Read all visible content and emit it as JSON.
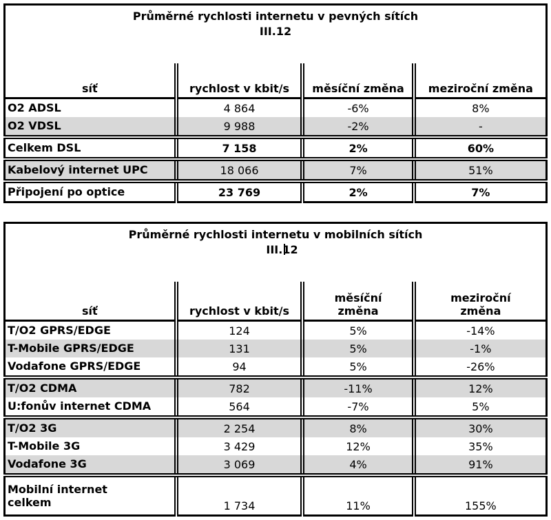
{
  "page": {
    "background_color": "#ffffff",
    "shade_color": "#d8d8d8",
    "border_color": "#000000",
    "text_color": "#000000"
  },
  "tables": [
    {
      "title": "Průměrné rychlosti internetu v pevných sítích",
      "period": "III.12",
      "columns": [
        "síť",
        "rychlost v kbit/s",
        "měsíční změna",
        "meziroční změna"
      ],
      "rows": [
        {
          "name": "O2 ADSL",
          "speed": "4 864",
          "monthly": "-6%",
          "yearly": "8%",
          "shaded": false,
          "bold_values": false,
          "group_end": false,
          "tall": false
        },
        {
          "name": "O2 VDSL",
          "speed": "9 988",
          "monthly": "-2%",
          "yearly": "-",
          "shaded": true,
          "bold_values": false,
          "group_end": true,
          "tall": false
        },
        {
          "name": "Celkem DSL",
          "speed": "7 158",
          "monthly": "2%",
          "yearly": "60%",
          "shaded": false,
          "bold_values": true,
          "group_end": true,
          "tall": false
        },
        {
          "name": "Kabelový internet UPC",
          "speed": "18 066",
          "monthly": "7%",
          "yearly": "51%",
          "shaded": true,
          "bold_values": false,
          "group_end": true,
          "tall": false
        },
        {
          "name": "Připojení po optice",
          "speed": "23 769",
          "monthly": "2%",
          "yearly": "7%",
          "shaded": false,
          "bold_values": true,
          "group_end": false,
          "tall": false
        }
      ]
    },
    {
      "title": "Průměrné rychlosti internetu v mobilních sítích",
      "period": "III.12",
      "columns": [
        "síť",
        "rychlost v kbit/s",
        "měsíční\nzměna",
        "meziroční\nzměna"
      ],
      "rows": [
        {
          "name": "T/O2 GPRS/EDGE",
          "speed": "124",
          "monthly": "5%",
          "yearly": "-14%",
          "shaded": false,
          "bold_values": false,
          "group_end": false,
          "tall": false
        },
        {
          "name": "T-Mobile GPRS/EDGE",
          "speed": "131",
          "monthly": "5%",
          "yearly": "-1%",
          "shaded": true,
          "bold_values": false,
          "group_end": false,
          "tall": false
        },
        {
          "name": "Vodafone GPRS/EDGE",
          "speed": "94",
          "monthly": "5%",
          "yearly": "-26%",
          "shaded": false,
          "bold_values": false,
          "group_end": true,
          "tall": false
        },
        {
          "name": "T/O2 CDMA",
          "speed": "782",
          "monthly": "-11%",
          "yearly": "12%",
          "shaded": true,
          "bold_values": false,
          "group_end": false,
          "tall": false
        },
        {
          "name": "U:fonův internet CDMA",
          "speed": "564",
          "monthly": "-7%",
          "yearly": "5%",
          "shaded": false,
          "bold_values": false,
          "group_end": true,
          "tall": false
        },
        {
          "name": "T/O2 3G",
          "speed": "2 254",
          "monthly": "8%",
          "yearly": "30%",
          "shaded": true,
          "bold_values": false,
          "group_end": false,
          "tall": false
        },
        {
          "name": "T-Mobile 3G",
          "speed": "3 429",
          "monthly": "12%",
          "yearly": "35%",
          "shaded": false,
          "bold_values": false,
          "group_end": false,
          "tall": false
        },
        {
          "name": "Vodafone 3G",
          "speed": "3 069",
          "monthly": "4%",
          "yearly": "91%",
          "shaded": true,
          "bold_values": false,
          "group_end": true,
          "tall": false
        },
        {
          "name": "Mobilní internet\ncelkem",
          "speed": "1 734",
          "monthly": "11%",
          "yearly": "155%",
          "shaded": false,
          "bold_values": false,
          "group_end": false,
          "tall": true
        }
      ]
    }
  ]
}
